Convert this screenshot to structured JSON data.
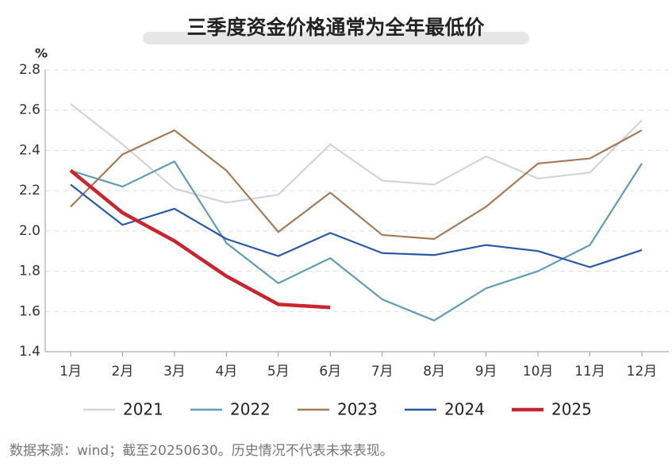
{
  "chart_data": {
    "type": "line",
    "title": "三季度资金价格通常为全年最低价",
    "y_label": "%",
    "categories": [
      "1月",
      "2月",
      "3月",
      "4月",
      "5月",
      "6月",
      "7月",
      "8月",
      "9月",
      "10月",
      "11月",
      "12月"
    ],
    "series": [
      {
        "name": "2021",
        "color": "#d4d4d4",
        "values": [
          2.63,
          2.43,
          2.21,
          2.14,
          2.18,
          2.43,
          2.25,
          2.23,
          2.37,
          2.26,
          2.29,
          2.55
        ]
      },
      {
        "name": "2022",
        "color": "#5e9db3",
        "values": [
          2.3,
          2.22,
          2.345,
          1.94,
          1.74,
          1.865,
          1.66,
          1.555,
          1.715,
          1.8,
          1.93,
          2.335
        ]
      },
      {
        "name": "2023",
        "color": "#a47b58",
        "values": [
          2.12,
          2.38,
          2.5,
          2.3,
          1.995,
          2.19,
          1.98,
          1.96,
          2.12,
          2.335,
          2.36,
          2.5
        ]
      },
      {
        "name": "2024",
        "color": "#2a58a8",
        "values": [
          2.23,
          2.03,
          2.11,
          1.96,
          1.875,
          1.99,
          1.89,
          1.88,
          1.93,
          1.9,
          1.82,
          1.905
        ]
      },
      {
        "name": "2025",
        "color": "#c8252e",
        "values": [
          2.3,
          2.09,
          1.95,
          1.775,
          1.635,
          1.62,
          null,
          null,
          null,
          null,
          null,
          null
        ]
      }
    ],
    "ylim": [
      1.4,
      2.8
    ],
    "yticks": [
      1.4,
      1.6,
      1.8,
      {
        "value": 2,
        "label": "2.0"
      },
      2.2,
      2.4,
      2.6,
      2.8
    ],
    "grid": true,
    "legend": "bottom",
    "source": "数据来源：wind；截至20250630。历史情况不代表未来表现。"
  }
}
